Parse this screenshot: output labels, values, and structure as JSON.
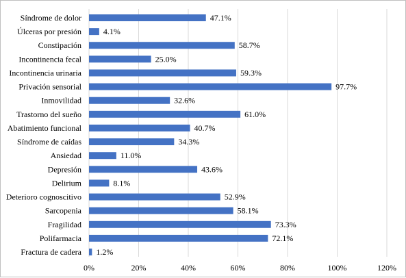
{
  "chart_data": {
    "type": "bar",
    "orientation": "horizontal",
    "categories": [
      "Síndrome de dolor",
      "Úlceras por presión",
      "Constipación",
      "Incontinencia fecal",
      "Incontinencia urinaria",
      "Privación sensorial",
      "Inmovilidad",
      "Trastorno del sueño",
      "Abatimiento funcional",
      "Síndrome de caídas",
      "Ansiedad",
      "Depresión",
      "Delirium",
      "Deterioro cognoscitivo",
      "Sarcopenia",
      "Fragilidad",
      "Polifarmacia",
      "Fractura de cadera"
    ],
    "values": [
      47.1,
      4.1,
      58.7,
      25.0,
      59.3,
      97.7,
      32.6,
      61.0,
      40.7,
      34.3,
      11.0,
      43.6,
      8.1,
      52.9,
      58.1,
      73.3,
      72.1,
      1.2
    ],
    "data_labels": [
      "47.1%",
      "4.1%",
      "58.7%",
      "25.0%",
      "59.3%",
      "97.7%",
      "32.6%",
      "61.0%",
      "40.7%",
      "34.3%",
      "11.0%",
      "43.6%",
      "8.1%",
      "52.9%",
      "58.1%",
      "73.3%",
      "72.1%",
      "1.2%"
    ],
    "xlim": [
      0,
      120
    ],
    "x_ticks": [
      "0%",
      "20%",
      "40%",
      "60%",
      "80%",
      "100%",
      "120%"
    ],
    "grid": "vertical",
    "legend": "none",
    "bar_color": "#4472c4",
    "grid_color": "#d9d9d9"
  }
}
